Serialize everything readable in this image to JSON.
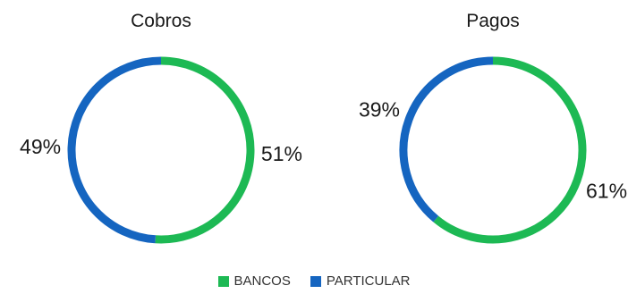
{
  "chart_data": [
    {
      "type": "pie",
      "variant": "donut",
      "title": "Cobros",
      "categories": [
        "BANCOS",
        "PARTICULAR"
      ],
      "values": [
        51,
        49
      ],
      "labels": [
        "51%",
        "49%"
      ],
      "colors": [
        "#1db954",
        "#1565c0"
      ]
    },
    {
      "type": "pie",
      "variant": "donut",
      "title": "Pagos",
      "categories": [
        "BANCOS",
        "PARTICULAR"
      ],
      "values": [
        61,
        39
      ],
      "labels": [
        "61%",
        "39%"
      ],
      "colors": [
        "#1db954",
        "#1565c0"
      ]
    }
  ],
  "legend": {
    "position": "bottom",
    "items": [
      {
        "label": "BANCOS",
        "color": "#1db954"
      },
      {
        "label": "PARTICULAR",
        "color": "#1565c0"
      }
    ]
  }
}
